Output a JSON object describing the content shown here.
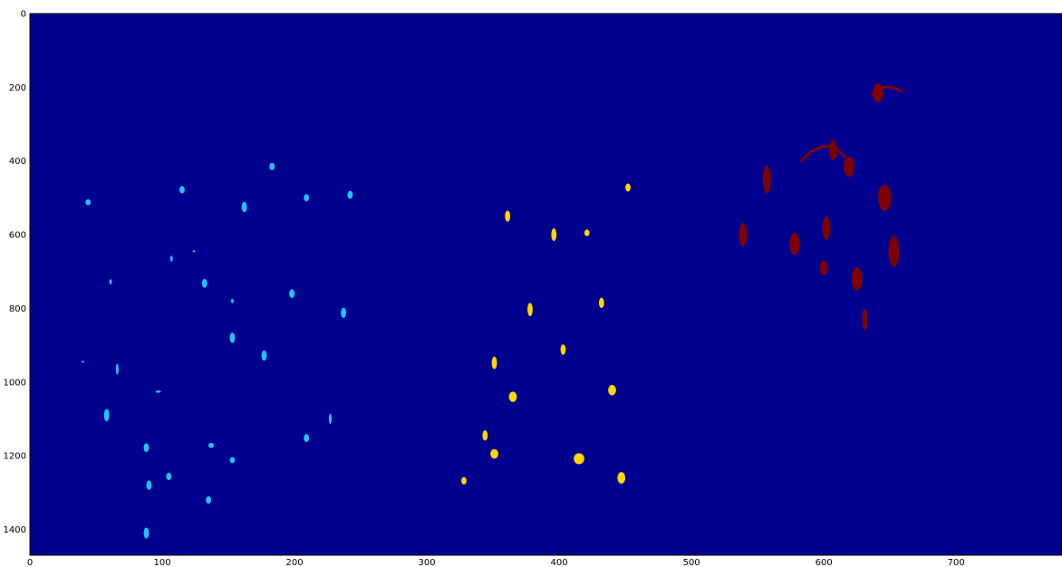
{
  "chart_data": {
    "type": "heatmap",
    "title": "",
    "xlabel": "",
    "ylabel": "",
    "xlim": [
      0,
      780
    ],
    "ylim": [
      1470,
      0
    ],
    "x_ticks": [
      0,
      100,
      200,
      300,
      400,
      500,
      600,
      700
    ],
    "y_ticks": [
      0,
      200,
      400,
      600,
      800,
      1000,
      1200,
      1400
    ],
    "grid": false,
    "background_color": "#00008f",
    "series": [
      {
        "color": "#20c4ff",
        "blobs": [
          [
            44,
            512,
            2,
            8
          ],
          [
            115,
            478,
            2,
            10
          ],
          [
            183,
            415,
            2,
            10
          ],
          [
            209,
            500,
            2,
            10
          ],
          [
            242,
            492,
            2,
            11
          ],
          [
            162,
            525,
            2,
            14
          ],
          [
            107,
            665,
            1,
            8
          ],
          [
            61,
            728,
            1,
            7
          ],
          [
            132,
            732,
            2,
            12
          ],
          [
            153,
            780,
            1,
            6
          ],
          [
            198,
            760,
            2,
            12
          ],
          [
            237,
            812,
            2,
            14
          ],
          [
            153,
            880,
            2,
            14
          ],
          [
            177,
            928,
            2,
            14
          ],
          [
            66,
            965,
            1,
            15
          ],
          [
            97,
            1026,
            2,
            3
          ],
          [
            58,
            1090,
            2,
            17
          ],
          [
            227,
            1100,
            1,
            14
          ],
          [
            209,
            1152,
            2,
            11
          ],
          [
            88,
            1178,
            2,
            12
          ],
          [
            137,
            1172,
            2,
            7
          ],
          [
            153,
            1212,
            2,
            8
          ],
          [
            105,
            1256,
            2,
            10
          ],
          [
            90,
            1280,
            2,
            13
          ],
          [
            135,
            1320,
            2,
            10
          ],
          [
            88,
            1410,
            2,
            15
          ],
          [
            124,
            645,
            1,
            1
          ],
          [
            40,
            945,
            1,
            1
          ]
        ]
      },
      {
        "color": "#ffd600",
        "blobs": [
          [
            452,
            472,
            2,
            11
          ],
          [
            361,
            550,
            2,
            15
          ],
          [
            396,
            600,
            2,
            17
          ],
          [
            421,
            595,
            2,
            9
          ],
          [
            378,
            803,
            2,
            18
          ],
          [
            432,
            785,
            2,
            14
          ],
          [
            403,
            912,
            2,
            14
          ],
          [
            351,
            948,
            2,
            17
          ],
          [
            440,
            1022,
            3,
            14
          ],
          [
            365,
            1040,
            3,
            14
          ],
          [
            344,
            1145,
            2,
            14
          ],
          [
            351,
            1195,
            3,
            13
          ],
          [
            415,
            1208,
            4,
            15
          ],
          [
            447,
            1260,
            3,
            16
          ],
          [
            328,
            1268,
            2,
            10
          ]
        ]
      },
      {
        "color": "#800000",
        "blobs": [
          [
            641,
            215,
            4,
            26
          ],
          [
            607,
            370,
            3,
            28
          ],
          [
            557,
            450,
            3,
            38
          ],
          [
            619,
            415,
            4,
            28
          ],
          [
            646,
            500,
            5,
            36
          ],
          [
            602,
            582,
            3,
            32
          ],
          [
            539,
            600,
            3,
            32
          ],
          [
            578,
            625,
            4,
            30
          ],
          [
            653,
            645,
            4,
            42
          ],
          [
            600,
            690,
            3,
            20
          ],
          [
            625,
            720,
            4,
            32
          ],
          [
            631,
            830,
            2,
            30
          ]
        ]
      }
    ],
    "arcs": [
      {
        "color": "#800000",
        "points": [
          [
            637,
            220
          ],
          [
            642,
            203
          ],
          [
            648,
            198
          ],
          [
            654,
            203
          ],
          [
            659,
            210
          ]
        ]
      },
      {
        "color": "#800000",
        "points": [
          [
            583,
            400
          ],
          [
            590,
            375
          ],
          [
            599,
            360
          ],
          [
            608,
            362
          ],
          [
            616,
            388
          ]
        ]
      }
    ]
  }
}
